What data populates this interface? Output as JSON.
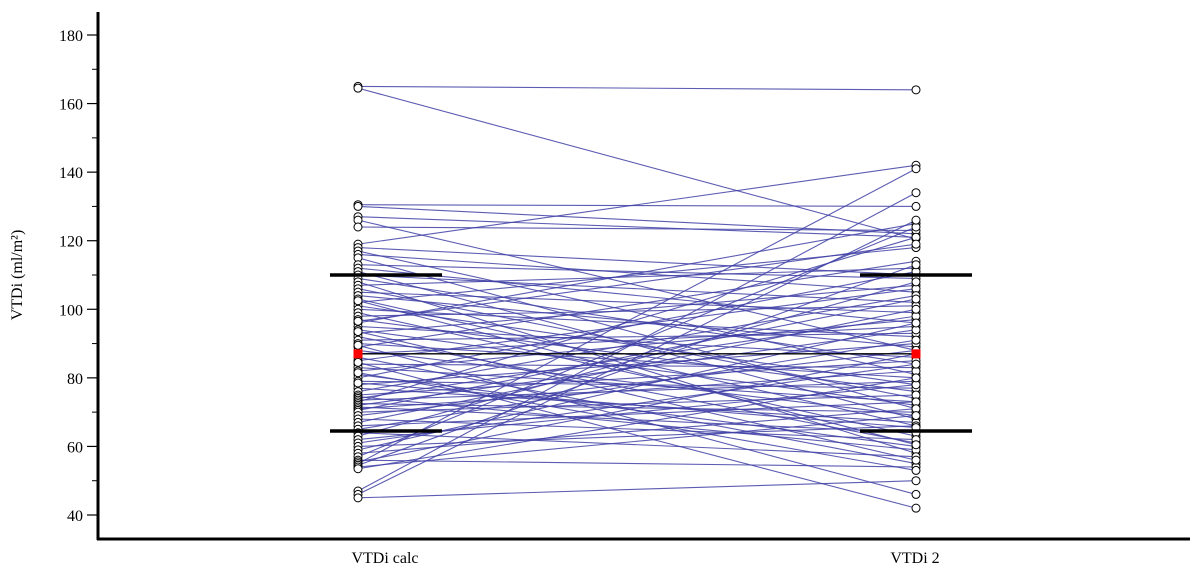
{
  "chart_data": {
    "type": "scatter",
    "subtype": "paired-dot-plot",
    "title": "",
    "xlabel": "",
    "ylabel": "VTDi (ml/m²)",
    "ylim": [
      35,
      185
    ],
    "yticks": [
      40,
      60,
      80,
      100,
      120,
      140,
      160,
      180
    ],
    "ytick_labels": [
      "40",
      "60",
      "80",
      "100",
      "120",
      "140",
      "160",
      "180"
    ],
    "categories": [
      "VTDi calc",
      "VTDi 2"
    ],
    "colors": {
      "pair_line": "#3f3fa6",
      "mean": "#ff0000",
      "sd": "#000000"
    },
    "mean": [
      87,
      87
    ],
    "sd_bands": {
      "upper": [
        110,
        110
      ],
      "lower": [
        64.5,
        64.5
      ]
    },
    "pairs": [
      [
        165,
        164
      ],
      [
        164.5,
        120.5
      ],
      [
        130.5,
        130
      ],
      [
        130,
        122
      ],
      [
        127,
        121
      ],
      [
        126,
        88
      ],
      [
        124,
        123
      ],
      [
        119,
        142
      ],
      [
        118,
        110
      ],
      [
        117,
        81
      ],
      [
        116,
        105
      ],
      [
        115,
        71
      ],
      [
        113,
        109
      ],
      [
        112,
        96
      ],
      [
        111,
        68
      ],
      [
        110,
        102
      ],
      [
        109,
        84
      ],
      [
        108,
        58
      ],
      [
        107,
        112
      ],
      [
        106,
        74
      ],
      [
        105,
        99
      ],
      [
        104,
        89
      ],
      [
        103,
        66
      ],
      [
        102,
        118
      ],
      [
        101,
        78
      ],
      [
        100,
        92
      ],
      [
        99,
        63
      ],
      [
        98,
        101
      ],
      [
        97,
        76
      ],
      [
        96,
        125
      ],
      [
        95,
        86
      ],
      [
        94,
        72
      ],
      [
        93,
        107
      ],
      [
        92,
        61
      ],
      [
        91,
        93
      ],
      [
        90,
        80
      ],
      [
        89,
        114
      ],
      [
        88,
        69
      ],
      [
        87,
        95
      ],
      [
        86,
        55
      ],
      [
        85,
        106
      ],
      [
        84,
        83
      ],
      [
        83,
        73
      ],
      [
        82,
        97
      ],
      [
        81,
        60
      ],
      [
        80,
        111
      ],
      [
        79,
        77
      ],
      [
        78,
        90
      ],
      [
        77,
        67
      ],
      [
        76,
        104
      ],
      [
        75,
        85
      ],
      [
        74.5,
        59
      ],
      [
        74,
        98
      ],
      [
        73.5,
        79
      ],
      [
        73,
        121
      ],
      [
        72.5,
        70
      ],
      [
        72,
        94
      ],
      [
        71.5,
        64
      ],
      [
        71,
        82
      ],
      [
        70.5,
        103
      ],
      [
        70,
        75
      ],
      [
        69,
        88
      ],
      [
        68,
        62
      ],
      [
        67,
        100
      ],
      [
        66,
        73
      ],
      [
        65,
        91
      ],
      [
        64,
        57
      ],
      [
        63,
        108
      ],
      [
        62,
        78
      ],
      [
        61,
        84
      ],
      [
        60,
        66
      ],
      [
        59,
        96
      ],
      [
        58,
        71
      ],
      [
        57,
        124
      ],
      [
        56,
        54
      ],
      [
        55.5,
        87
      ],
      [
        55,
        141
      ],
      [
        54.5,
        113
      ],
      [
        54,
        69
      ],
      [
        53.5,
        80
      ],
      [
        47,
        134
      ],
      [
        46,
        126
      ],
      [
        45,
        50
      ],
      [
        89.5,
        46
      ],
      [
        84.5,
        42
      ],
      [
        93.5,
        56
      ],
      [
        78.5,
        65.5
      ],
      [
        81.5,
        53
      ],
      [
        96.5,
        119
      ],
      [
        102.5,
        60.5
      ]
    ]
  }
}
